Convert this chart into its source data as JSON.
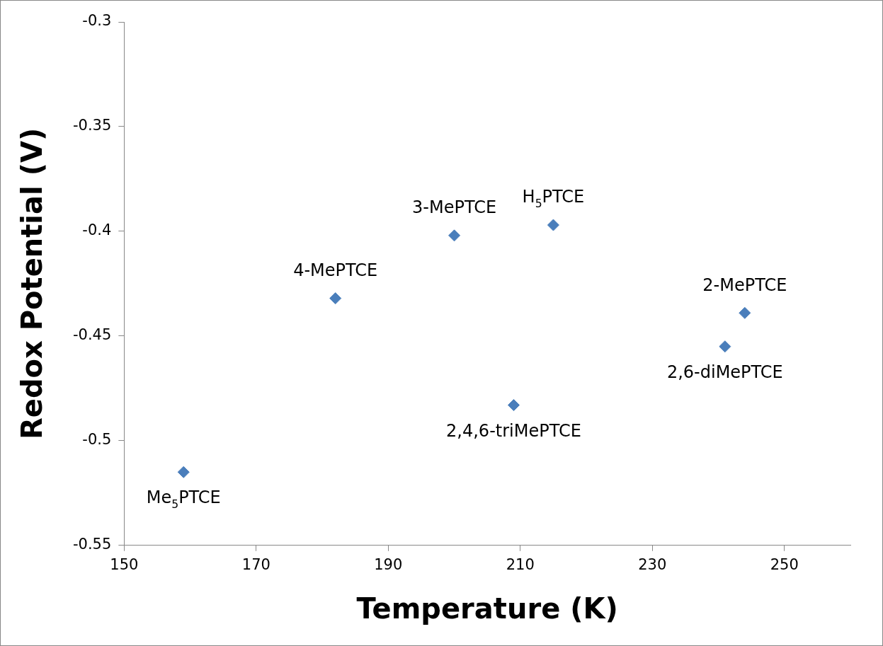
{
  "chart_data": {
    "type": "scatter",
    "xlabel": "Temperature (K)",
    "ylabel": "Redox Potential (V)",
    "x": [
      159,
      182,
      200,
      215,
      209,
      241,
      244
    ],
    "values": [
      -0.515,
      -0.432,
      -0.402,
      -0.397,
      -0.483,
      -0.455,
      -0.439
    ],
    "color": "#4a7ebb",
    "marker": "diamond",
    "grid": false,
    "legend": false,
    "xlim": [
      150,
      260
    ],
    "xticks": [
      150,
      170,
      190,
      210,
      230,
      250
    ],
    "ylim": [
      -0.55,
      -0.3
    ],
    "yticks": [
      -0.55,
      -0.5,
      -0.45,
      -0.4,
      -0.35,
      -0.3
    ],
    "annotations": [
      {
        "text": "Me$_{5}$PTCE",
        "x": 159,
        "y": -0.515
      },
      {
        "text": "4-MePTCE",
        "x": 182,
        "y": -0.432
      },
      {
        "text": "3-MePTCE",
        "x": 200,
        "y": -0.402
      },
      {
        "text": "H$_{5}$PTCE",
        "x": 215,
        "y": -0.397
      },
      {
        "text": "2,4,6-triMePTCE",
        "x": 209,
        "y": -0.483
      },
      {
        "text": "2,6-diMePTCE",
        "x": 241,
        "y": -0.455
      },
      {
        "text": "2-MePTCE",
        "x": 244,
        "y": -0.439
      }
    ]
  }
}
